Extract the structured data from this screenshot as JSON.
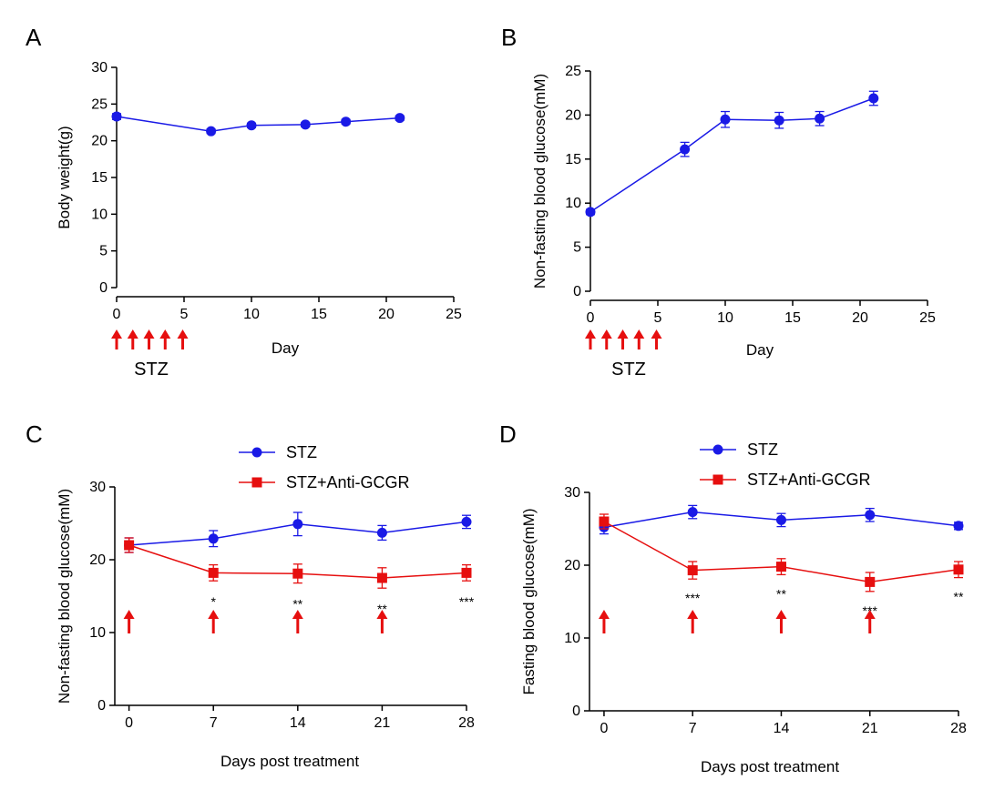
{
  "colors": {
    "blue": "#1a1ae6",
    "red": "#e60f0f",
    "axis": "#000000"
  },
  "chart_data": [
    {
      "panel": "A",
      "type": "line",
      "xlabel": "Day",
      "ylabel": "Body weight(g)",
      "xlim": [
        0,
        25
      ],
      "ylim": [
        0,
        30
      ],
      "xticks": [
        0,
        5,
        10,
        15,
        20,
        25
      ],
      "yticks": [
        0,
        5,
        10,
        15,
        20,
        25,
        30
      ],
      "annotation_text": "STZ",
      "injection_days": [
        0,
        1.2,
        2.4,
        3.6,
        4.9
      ],
      "series": [
        {
          "color": "#1a1ae6",
          "marker": "circle",
          "x": [
            0,
            7,
            10,
            14,
            17,
            21
          ],
          "y": [
            23.3,
            21.3,
            22.1,
            22.2,
            22.6,
            23.1
          ],
          "err": [
            0.4,
            0.3,
            0.3,
            0.3,
            0.3,
            0.3
          ]
        }
      ]
    },
    {
      "panel": "B",
      "type": "line",
      "xlabel": "Day",
      "ylabel": "Non-fasting blood glucose(mM)",
      "xlim": [
        0,
        25
      ],
      "ylim": [
        0,
        25
      ],
      "xticks": [
        0,
        5,
        10,
        15,
        20,
        25
      ],
      "yticks": [
        0,
        5,
        10,
        15,
        20,
        25
      ],
      "annotation_text": "STZ",
      "injection_days": [
        0,
        1.2,
        2.4,
        3.6,
        4.9
      ],
      "series": [
        {
          "color": "#1a1ae6",
          "marker": "circle",
          "x": [
            0,
            7,
            10,
            14,
            17,
            21
          ],
          "y": [
            9.0,
            16.1,
            19.5,
            19.4,
            19.6,
            21.9
          ],
          "err": [
            0.3,
            0.8,
            0.9,
            0.9,
            0.8,
            0.8
          ]
        }
      ]
    },
    {
      "panel": "C",
      "type": "line",
      "xlabel": "Days post treatment",
      "ylabel": "Non-fasting blood glucose(mM)",
      "xlim": [
        -0.5,
        28
      ],
      "ylim": [
        0,
        30
      ],
      "xticks": [
        0,
        7,
        14,
        21,
        28
      ],
      "yticks": [
        0,
        10,
        20,
        30
      ],
      "injection_days": [
        0,
        7,
        14,
        21
      ],
      "series": [
        {
          "name": "STZ",
          "color": "#1a1ae6",
          "marker": "circle",
          "x": [
            0,
            7,
            14,
            21,
            28
          ],
          "y": [
            22.0,
            22.9,
            24.9,
            23.7,
            25.2
          ],
          "err": [
            1.0,
            1.1,
            1.6,
            1.0,
            0.9
          ]
        },
        {
          "name": "STZ+Anti-GCGR",
          "color": "#e60f0f",
          "marker": "square",
          "x": [
            0,
            7,
            14,
            21,
            28
          ],
          "y": [
            22.0,
            18.2,
            18.1,
            17.5,
            18.2
          ],
          "err": [
            1.0,
            1.1,
            1.3,
            1.4,
            1.1
          ]
        }
      ],
      "significance": [
        {
          "x": 7,
          "label": "*"
        },
        {
          "x": 14,
          "label": "**"
        },
        {
          "x": 21,
          "label": "**"
        },
        {
          "x": 28,
          "label": "***"
        }
      ]
    },
    {
      "panel": "D",
      "type": "line",
      "xlabel": "Days post treatment",
      "ylabel": "Fasting blood glucose(mM)",
      "xlim": [
        -0.5,
        28
      ],
      "ylim": [
        0,
        30
      ],
      "xticks": [
        0,
        7,
        14,
        21,
        28
      ],
      "yticks": [
        0,
        10,
        20,
        30
      ],
      "injection_days": [
        0,
        7,
        14,
        21
      ],
      "series": [
        {
          "name": "STZ",
          "color": "#1a1ae6",
          "marker": "circle",
          "x": [
            0,
            7,
            14,
            21,
            28
          ],
          "y": [
            25.2,
            27.3,
            26.2,
            26.9,
            25.4
          ],
          "err": [
            0.9,
            0.9,
            0.9,
            0.9,
            0.5
          ]
        },
        {
          "name": "STZ+Anti-GCGR",
          "color": "#e60f0f",
          "marker": "square",
          "x": [
            0,
            7,
            14,
            21,
            28
          ],
          "y": [
            26.0,
            19.3,
            19.8,
            17.7,
            19.4
          ],
          "err": [
            1.0,
            1.2,
            1.1,
            1.3,
            1.1
          ]
        }
      ],
      "significance": [
        {
          "x": 7,
          "label": "***"
        },
        {
          "x": 14,
          "label": "**"
        },
        {
          "x": 21,
          "label": "***"
        },
        {
          "x": 28,
          "label": "**"
        }
      ]
    }
  ]
}
